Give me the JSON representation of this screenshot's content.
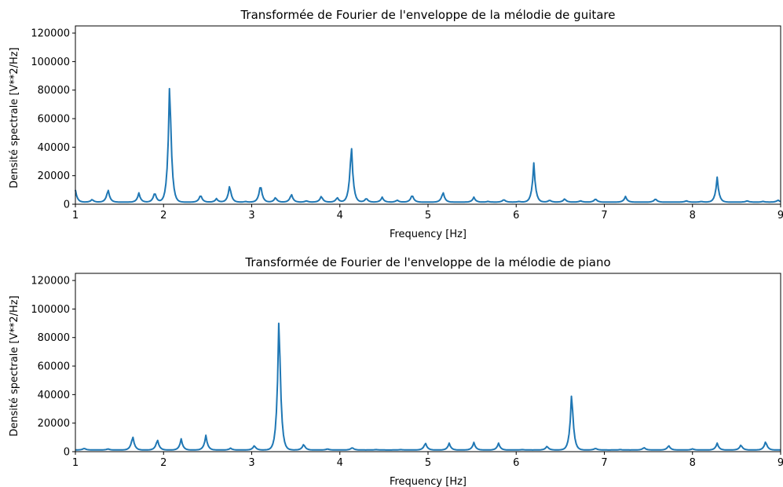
{
  "colors": {
    "series": "#1f77b4",
    "axes": "#000000",
    "background": "#ffffff"
  },
  "chart_data": [
    {
      "type": "line",
      "title": "Transformée de Fourier de l'enveloppe de la mélodie de guitare",
      "xlabel": "Frequency [Hz]",
      "ylabel": "Densité spectrale [V**2/Hz]",
      "xlim": [
        1,
        9
      ],
      "ylim": [
        0,
        125000
      ],
      "xticks": [
        1,
        2,
        3,
        4,
        5,
        6,
        7,
        8,
        9
      ],
      "yticks": [
        0,
        20000,
        40000,
        60000,
        80000,
        100000,
        120000
      ],
      "grid": false,
      "baseline": 1500,
      "peaks": [
        {
          "x": 1.0,
          "y": 10000
        },
        {
          "x": 1.19,
          "y": 3500
        },
        {
          "x": 1.37,
          "y": 11000
        },
        {
          "x": 1.72,
          "y": 8000
        },
        {
          "x": 1.9,
          "y": 9000
        },
        {
          "x": 2.07,
          "y": 94000
        },
        {
          "x": 2.42,
          "y": 7000
        },
        {
          "x": 2.6,
          "y": 4000
        },
        {
          "x": 2.75,
          "y": 14000
        },
        {
          "x": 2.93,
          "y": 2000
        },
        {
          "x": 3.1,
          "y": 15000
        },
        {
          "x": 3.27,
          "y": 5000
        },
        {
          "x": 3.45,
          "y": 7500
        },
        {
          "x": 3.62,
          "y": 2500
        },
        {
          "x": 3.79,
          "y": 6000
        },
        {
          "x": 3.97,
          "y": 5000
        },
        {
          "x": 4.13,
          "y": 45000
        },
        {
          "x": 4.3,
          "y": 4500
        },
        {
          "x": 4.48,
          "y": 5000
        },
        {
          "x": 4.65,
          "y": 3000
        },
        {
          "x": 4.82,
          "y": 7000
        },
        {
          "x": 5.17,
          "y": 9000
        },
        {
          "x": 5.52,
          "y": 5000
        },
        {
          "x": 5.68,
          "y": 2000
        },
        {
          "x": 5.86,
          "y": 3500
        },
        {
          "x": 6.03,
          "y": 2000
        },
        {
          "x": 6.2,
          "y": 29000
        },
        {
          "x": 6.38,
          "y": 3000
        },
        {
          "x": 6.55,
          "y": 4000
        },
        {
          "x": 6.73,
          "y": 2500
        },
        {
          "x": 6.9,
          "y": 4000
        },
        {
          "x": 7.24,
          "y": 5500
        },
        {
          "x": 7.58,
          "y": 4000
        },
        {
          "x": 7.93,
          "y": 2500
        },
        {
          "x": 8.1,
          "y": 2000
        },
        {
          "x": 8.28,
          "y": 19000
        },
        {
          "x": 8.45,
          "y": 1500
        },
        {
          "x": 8.62,
          "y": 2500
        },
        {
          "x": 8.8,
          "y": 2000
        },
        {
          "x": 8.97,
          "y": 3000
        }
      ]
    },
    {
      "type": "line",
      "title": "Transformée de Fourier de l'enveloppe de la mélodie de piano",
      "xlabel": "Frequency [Hz]",
      "ylabel": "Densité spectrale [V**2/Hz]",
      "xlim": [
        1,
        9
      ],
      "ylim": [
        0,
        125000
      ],
      "xticks": [
        1,
        2,
        3,
        4,
        5,
        6,
        7,
        8,
        9
      ],
      "yticks": [
        0,
        20000,
        40000,
        60000,
        80000,
        100000,
        120000
      ],
      "grid": false,
      "baseline": 1200,
      "peaks": [
        {
          "x": 1.1,
          "y": 2500
        },
        {
          "x": 1.37,
          "y": 2000
        },
        {
          "x": 1.65,
          "y": 11500
        },
        {
          "x": 1.93,
          "y": 9000
        },
        {
          "x": 2.2,
          "y": 9000
        },
        {
          "x": 2.48,
          "y": 11500
        },
        {
          "x": 2.76,
          "y": 2500
        },
        {
          "x": 3.03,
          "y": 4500
        },
        {
          "x": 3.31,
          "y": 104500
        },
        {
          "x": 3.59,
          "y": 5500
        },
        {
          "x": 3.86,
          "y": 2000
        },
        {
          "x": 4.14,
          "y": 3000
        },
        {
          "x": 4.41,
          "y": 1500
        },
        {
          "x": 4.69,
          "y": 1500
        },
        {
          "x": 4.97,
          "y": 6500
        },
        {
          "x": 5.24,
          "y": 6000
        },
        {
          "x": 5.52,
          "y": 6500
        },
        {
          "x": 5.8,
          "y": 6000
        },
        {
          "x": 6.07,
          "y": 1500
        },
        {
          "x": 6.35,
          "y": 4000
        },
        {
          "x": 6.63,
          "y": 45000
        },
        {
          "x": 6.9,
          "y": 2500
        },
        {
          "x": 7.18,
          "y": 1500
        },
        {
          "x": 7.45,
          "y": 3000
        },
        {
          "x": 7.73,
          "y": 4500
        },
        {
          "x": 8.0,
          "y": 2000
        },
        {
          "x": 8.28,
          "y": 6000
        },
        {
          "x": 8.55,
          "y": 5000
        },
        {
          "x": 8.83,
          "y": 7500
        }
      ]
    }
  ]
}
